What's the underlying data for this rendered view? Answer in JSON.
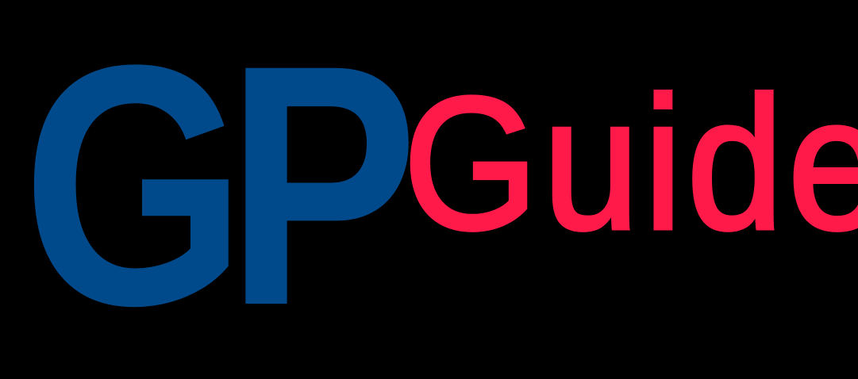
{
  "logo": {
    "mark": "GP",
    "word": "Guide",
    "colors": {
      "background": "#000000",
      "mark": "#004a8c",
      "word": "#ff1a4a"
    }
  }
}
